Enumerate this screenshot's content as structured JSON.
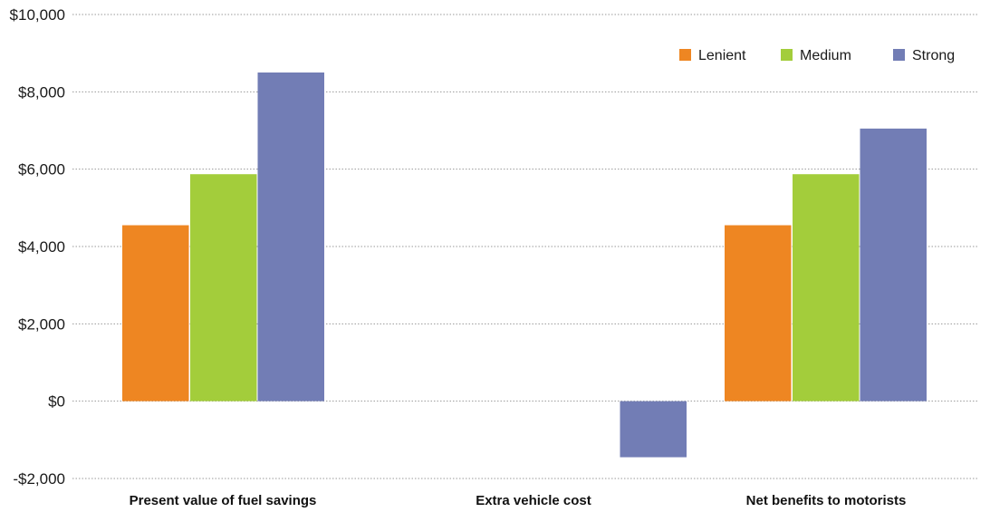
{
  "chart_data": {
    "type": "bar",
    "title": "",
    "xlabel": "",
    "ylabel": "",
    "categories": [
      "Present value of fuel savings",
      "Extra vehicle cost",
      "Net benefits to motorists"
    ],
    "series": [
      {
        "name": "Lenient",
        "color": "#ee8622",
        "values": [
          4550,
          0,
          4550
        ]
      },
      {
        "name": "Medium",
        "color": "#a3cd3b",
        "values": [
          5870,
          0,
          5870
        ]
      },
      {
        "name": "Strong",
        "color": "#727db5",
        "values": [
          8500,
          -1450,
          7050
        ]
      }
    ],
    "ylim": [
      -2000,
      10000
    ],
    "yticks": [
      -2000,
      0,
      2000,
      4000,
      6000,
      8000,
      10000
    ],
    "ytick_labels": [
      "-$2,000",
      "$0",
      "$2,000",
      "$4,000",
      "$6,000",
      "$8,000",
      "$10,000"
    ],
    "grid": true,
    "legend_position": "top-right"
  }
}
